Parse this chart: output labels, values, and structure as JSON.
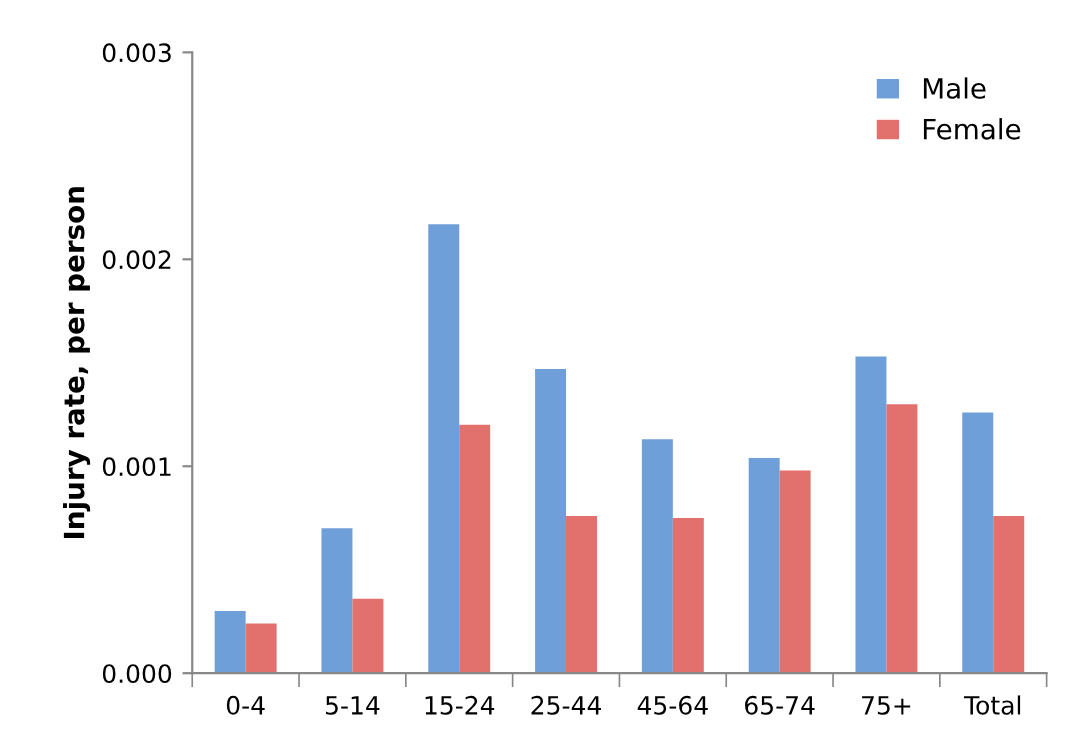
{
  "chart_data": {
    "type": "bar",
    "ylabel": "Injury rate, per person",
    "categories": [
      "0-4",
      "5-14",
      "15-24",
      "25-44",
      "45-64",
      "65-74",
      "75+",
      "Total"
    ],
    "series": [
      {
        "name": "Male",
        "color": "#6f9fd8",
        "values": [
          0.0003,
          0.0007,
          0.00217,
          0.00147,
          0.00113,
          0.00104,
          0.00153,
          0.00126
        ]
      },
      {
        "name": "Female",
        "color": "#e2706c",
        "values": [
          0.00024,
          0.00036,
          0.0012,
          0.00076,
          0.00075,
          0.00098,
          0.0013,
          0.00076
        ]
      }
    ],
    "ylim": [
      0,
      0.003
    ],
    "yticks": [
      {
        "value": 0,
        "label": "0.000"
      },
      {
        "value": 0.001,
        "label": "0.001"
      },
      {
        "value": 0.002,
        "label": "0.002"
      },
      {
        "value": 0.003,
        "label": "0.003"
      }
    ],
    "grid": false,
    "legend": "top right"
  }
}
